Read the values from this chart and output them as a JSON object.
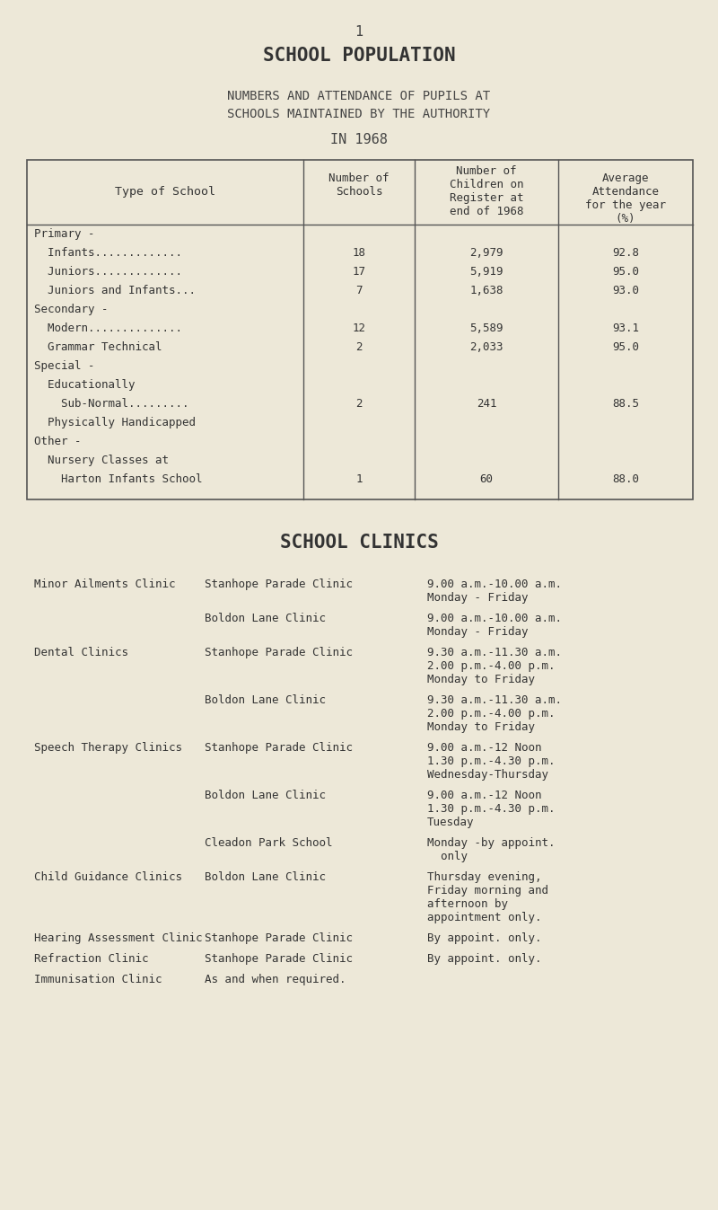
{
  "bg_color": "#ede8d8",
  "page_number": "1",
  "title": "SCHOOL POPULATION",
  "subtitle_line1": "NUMBERS AND ATTENDANCE OF PUPILS AT",
  "subtitle_line2": "SCHOOLS MAINTAINED BY THE AUTHORITY",
  "subtitle_line3": "IN 1968",
  "table_rows": [
    [
      "Primary -",
      "",
      "",
      ""
    ],
    [
      "  Infants.............",
      "18",
      "2,979",
      "92.8"
    ],
    [
      "  Juniors.............",
      "17",
      "5,919",
      "95.0"
    ],
    [
      "  Juniors and Infants...",
      "7",
      "1,638",
      "93.0"
    ],
    [
      "Secondary -",
      "",
      "",
      ""
    ],
    [
      "  Modern..............",
      "12",
      "5,589",
      "93.1"
    ],
    [
      "  Grammar Technical",
      "2",
      "2,033",
      "95.0"
    ],
    [
      "Special -",
      "",
      "",
      ""
    ],
    [
      "  Educationally",
      "",
      "",
      ""
    ],
    [
      "    Sub-Normal.........",
      "2",
      "241",
      "88.5"
    ],
    [
      "  Physically Handicapped",
      "",
      "",
      ""
    ],
    [
      "Other -",
      "",
      "",
      ""
    ],
    [
      "  Nursery Classes at",
      "",
      "",
      ""
    ],
    [
      "    Harton Infants School",
      "1",
      "60",
      "88.0"
    ]
  ],
  "clinics_title": "SCHOOL CLINICS",
  "clinics": [
    {
      "type": "Minor Ailments Clinic",
      "location": "Stanhope Parade Clinic",
      "hours": "9.00 a.m.-10.00 a.m.\nMonday - Friday"
    },
    {
      "type": "",
      "location": "Boldon Lane Clinic",
      "hours": "9.00 a.m.-10.00 a.m.\nMonday - Friday"
    },
    {
      "type": "Dental Clinics",
      "location": "Stanhope Parade Clinic",
      "hours": "9.30 a.m.-11.30 a.m.\n2.00 p.m.-4.00 p.m.\nMonday to Friday"
    },
    {
      "type": "",
      "location": "Boldon Lane Clinic",
      "hours": "9.30 a.m.-11.30 a.m.\n2.00 p.m.-4.00 p.m.\nMonday to Friday"
    },
    {
      "type": "Speech Therapy Clinics",
      "location": "Stanhope Parade Clinic",
      "hours": "9.00 a.m.-12 Noon\n1.30 p.m.-4.30 p.m.\nWednesday-Thursday"
    },
    {
      "type": "",
      "location": "Boldon Lane Clinic",
      "hours": "9.00 a.m.-12 Noon\n1.30 p.m.-4.30 p.m.\nTuesday"
    },
    {
      "type": "",
      "location": "Cleadon Park School",
      "hours": "Monday -by appoint.\n  only"
    },
    {
      "type": "Child Guidance Clinics",
      "location": "Boldon Lane Clinic",
      "hours": "Thursday evening,\nFriday morning and\nafternoon by\nappointment only."
    },
    {
      "type": "Hearing Assessment Clinic",
      "location": "Stanhope Parade Clinic",
      "hours": "By appoint. only."
    },
    {
      "type": "Refraction Clinic",
      "location": "Stanhope Parade Clinic",
      "hours": "By appoint. only."
    },
    {
      "type": "Immunisation Clinic",
      "location": "As and when required.",
      "hours": ""
    }
  ]
}
